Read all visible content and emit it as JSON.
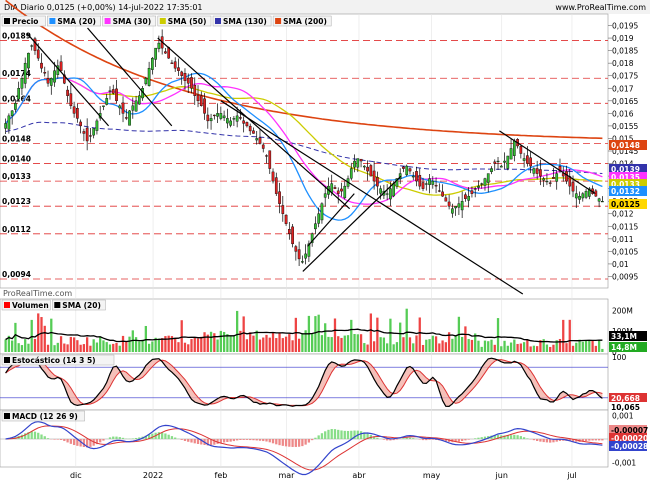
{
  "header": {
    "instrument": "DIA Diario 0,0125 (+0,00%) 14-jul-2022 17:35:01",
    "site": "www.ProRealTime.com"
  },
  "watermark": "ProRealTime.com",
  "x_labels": [
    "dic",
    "2022",
    "feb",
    "mar",
    "abr",
    "may",
    "jun",
    "jul"
  ],
  "price_panel": {
    "legend": [
      {
        "label": "Precio",
        "color": "#000000"
      },
      {
        "label": "SMA (20)",
        "color": "#1e90ff"
      },
      {
        "label": "SMA (30)",
        "color": "#ff33ff"
      },
      {
        "label": "SMA (50)",
        "color": "#cccc00"
      },
      {
        "label": "SMA (130)",
        "color": "#3333aa"
      },
      {
        "label": "SMA (200)",
        "color": "#dd4411"
      }
    ],
    "right_ticks": [
      "0,0195",
      "0,019",
      "0,0185",
      "0,018",
      "0,0175",
      "0,017",
      "0,0165",
      "0,016",
      "0,0155",
      "0,015",
      "0,0145",
      "0,014",
      "0,0135",
      "0,013",
      "0,0125",
      "0,012",
      "0,0115",
      "0,011",
      "0,0105",
      "0,01",
      "0,0095"
    ],
    "left_levels": [
      "0,0189",
      "0,0174",
      "0,0164",
      "0,0148",
      "0,0140",
      "0,0133",
      "0,0123",
      "0,0112",
      "0,0094"
    ],
    "value_badges": [
      {
        "text": "0,0148",
        "color": "#dd4411"
      },
      {
        "text": "0,0139",
        "color": "#3333aa"
      },
      {
        "text": "0,0135",
        "color": "#ff33ff"
      },
      {
        "text": "0,0133",
        "color": "#cccc00"
      },
      {
        "text": "0,0132",
        "color": "#1e90ff"
      },
      {
        "text": "0,0125",
        "color": "#ffd700"
      }
    ]
  },
  "volume_panel": {
    "legend": [
      {
        "label": "Volumen",
        "color": "#ff0000"
      },
      {
        "label": "SMA (20)",
        "color": "#000000"
      }
    ],
    "ticks": [
      "200M",
      "100M",
      "0"
    ],
    "badges": [
      "33,1M",
      "14,8M"
    ]
  },
  "stoch_panel": {
    "legend": [
      {
        "label": "Estocástico (14 3 5)",
        "color": "#000000"
      }
    ],
    "ticks": [
      "100",
      "0"
    ],
    "badges": [
      "20,668",
      "10,065"
    ]
  },
  "macd_panel": {
    "legend": [
      {
        "label": "MACD (12 26 9)",
        "color": "#000000"
      }
    ],
    "ticks": [
      "0,001",
      "-0,001"
    ],
    "badges": [
      "-0,00007",
      "-0,00020",
      "-0,00028"
    ]
  },
  "chart_data": {
    "type": "candlestick",
    "title": "DIA Diario",
    "xlabel": "",
    "ylabel": "",
    "ylim": [
      0.0092,
      0.0198
    ],
    "dates": [
      "2021-11-01",
      "2021-11-02",
      "2021-11-03",
      "2021-11-04",
      "2021-11-05",
      "2021-11-08",
      "2021-11-09",
      "2021-11-10",
      "2021-11-11",
      "2021-11-12",
      "2021-11-15",
      "2021-11-16",
      "2021-11-17",
      "2021-11-18",
      "2021-11-19",
      "2021-11-22",
      "2021-11-23",
      "2021-11-24",
      "2021-11-25",
      "2021-11-26",
      "2021-11-29",
      "2021-11-30",
      "2021-12-01",
      "2021-12-02",
      "2021-12-03",
      "2021-12-06",
      "2021-12-07",
      "2021-12-08",
      "2021-12-09",
      "2021-12-10",
      "2021-12-13",
      "2021-12-14",
      "2021-12-15",
      "2021-12-16",
      "2021-12-17",
      "2021-12-20",
      "2021-12-21",
      "2021-12-22",
      "2021-12-23",
      "2021-12-24",
      "2021-12-27",
      "2021-12-28",
      "2021-12-29",
      "2021-12-30",
      "2021-12-31",
      "2022-01-03",
      "2022-01-04",
      "2022-01-05",
      "2022-01-06",
      "2022-01-07",
      "2022-01-10",
      "2022-01-11",
      "2022-01-12",
      "2022-01-13",
      "2022-01-14",
      "2022-01-17",
      "2022-01-18",
      "2022-01-19",
      "2022-01-20",
      "2022-01-21",
      "2022-01-24",
      "2022-01-25",
      "2022-01-26",
      "2022-01-27",
      "2022-01-28",
      "2022-01-31",
      "2022-02-01",
      "2022-02-02",
      "2022-02-03",
      "2022-02-04",
      "2022-02-07",
      "2022-02-08",
      "2022-02-09",
      "2022-02-10",
      "2022-02-11",
      "2022-02-14",
      "2022-02-15",
      "2022-02-16",
      "2022-02-17",
      "2022-02-18",
      "2022-02-21",
      "2022-02-22",
      "2022-02-23",
      "2022-02-24",
      "2022-02-25",
      "2022-02-28",
      "2022-03-01",
      "2022-03-02",
      "2022-03-03",
      "2022-03-04",
      "2022-03-07",
      "2022-03-08",
      "2022-03-09",
      "2022-03-10",
      "2022-03-11",
      "2022-03-14",
      "2022-03-15",
      "2022-03-16",
      "2022-03-17",
      "2022-03-18",
      "2022-03-21",
      "2022-03-22",
      "2022-03-23",
      "2022-03-24",
      "2022-03-25",
      "2022-03-28",
      "2022-03-29",
      "2022-03-30",
      "2022-03-31",
      "2022-04-01",
      "2022-04-04",
      "2022-04-05",
      "2022-04-06",
      "2022-04-07",
      "2022-04-08",
      "2022-04-11",
      "2022-04-12",
      "2022-04-13",
      "2022-04-14",
      "2022-04-15",
      "2022-04-18",
      "2022-04-19",
      "2022-04-20",
      "2022-04-21",
      "2022-04-22",
      "2022-04-25",
      "2022-04-26",
      "2022-04-27",
      "2022-04-28",
      "2022-04-29",
      "2022-05-02",
      "2022-05-03",
      "2022-05-04",
      "2022-05-05",
      "2022-05-06",
      "2022-05-09",
      "2022-05-10",
      "2022-05-11",
      "2022-05-12",
      "2022-05-13",
      "2022-05-16",
      "2022-05-17",
      "2022-05-18",
      "2022-05-19",
      "2022-05-20",
      "2022-05-23",
      "2022-05-24",
      "2022-05-25",
      "2022-05-26",
      "2022-05-27",
      "2022-05-30",
      "2022-05-31",
      "2022-06-01",
      "2022-06-02",
      "2022-06-03",
      "2022-06-06",
      "2022-06-07",
      "2022-06-08",
      "2022-06-09",
      "2022-06-10",
      "2022-06-13",
      "2022-06-14",
      "2022-06-15",
      "2022-06-16",
      "2022-06-17",
      "2022-06-20",
      "2022-06-21",
      "2022-06-22",
      "2022-06-23",
      "2022-06-24",
      "2022-06-27",
      "2022-06-28",
      "2022-06-29",
      "2022-06-30",
      "2022-07-01",
      "2022-07-04",
      "2022-07-05",
      "2022-07-06",
      "2022-07-07",
      "2022-07-08",
      "2022-07-11",
      "2022-07-12",
      "2022-07-13",
      "2022-07-14"
    ],
    "close": [
      0.0156,
      0.0159,
      0.0161,
      0.0164,
      0.017,
      0.0174,
      0.018,
      0.0184,
      0.0187,
      0.0185,
      0.0182,
      0.0178,
      0.0176,
      0.0172,
      0.0174,
      0.0177,
      0.0179,
      0.0177,
      0.0172,
      0.0167,
      0.0163,
      0.016,
      0.0158,
      0.0155,
      0.0152,
      0.0149,
      0.0151,
      0.0154,
      0.0157,
      0.016,
      0.0163,
      0.0166,
      0.0169,
      0.0168,
      0.0165,
      0.0163,
      0.016,
      0.0158,
      0.0161,
      0.0163,
      0.0165,
      0.0167,
      0.017,
      0.0174,
      0.0178,
      0.0182,
      0.0186,
      0.0188,
      0.0186,
      0.0184,
      0.0182,
      0.018,
      0.0178,
      0.0177,
      0.0175,
      0.0173,
      0.0172,
      0.017,
      0.0167,
      0.0165,
      0.0163,
      0.016,
      0.0157,
      0.0158,
      0.0159,
      0.016,
      0.016,
      0.0159,
      0.0158,
      0.0157,
      0.0158,
      0.0159,
      0.0158,
      0.0156,
      0.0155,
      0.0153,
      0.0152,
      0.015,
      0.0148,
      0.0146,
      0.0143,
      0.0138,
      0.0133,
      0.0128,
      0.0124,
      0.012,
      0.0116,
      0.0112,
      0.0108,
      0.0105,
      0.0102,
      0.0101,
      0.0104,
      0.0108,
      0.0112,
      0.0116,
      0.012,
      0.0124,
      0.0128,
      0.0131,
      0.0132,
      0.013,
      0.0128,
      0.0129,
      0.0131,
      0.0134,
      0.0138,
      0.0141,
      0.0142,
      0.0141,
      0.0139,
      0.0137,
      0.0135,
      0.0133,
      0.0131,
      0.013,
      0.0129,
      0.0128,
      0.013,
      0.0132,
      0.0134,
      0.0136,
      0.0138,
      0.0139,
      0.0137,
      0.0135,
      0.0133,
      0.0131,
      0.013,
      0.0132,
      0.0134,
      0.0133,
      0.0131,
      0.0129,
      0.0127,
      0.0125,
      0.0123,
      0.0122,
      0.0123,
      0.0124,
      0.0125,
      0.0126,
      0.0127,
      0.0128,
      0.013,
      0.0131,
      0.0132,
      0.0134,
      0.0136,
      0.0138,
      0.014,
      0.0141,
      0.0139,
      0.0141,
      0.0143,
      0.0146,
      0.0149,
      0.0147,
      0.0144,
      0.0142,
      0.014,
      0.0139,
      0.0138,
      0.0136,
      0.0135,
      0.0134,
      0.0133,
      0.0132,
      0.0134,
      0.0136,
      0.0137,
      0.0135,
      0.0133,
      0.0131,
      0.0129,
      0.0128,
      0.0127,
      0.0128,
      0.0129,
      0.013,
      0.0128,
      0.0127,
      0.0126,
      0.0125
    ],
    "legend_series": [
      "Precio",
      "SMA (20)",
      "SMA (30)",
      "SMA (50)",
      "SMA (130)",
      "SMA (200)"
    ],
    "last": {
      "precio": 0.0125,
      "sma20": 0.0132,
      "sma30": 0.0135,
      "sma50": 0.0133,
      "sma130": 0.0139,
      "sma200": 0.0148
    },
    "horizontal_levels": [
      0.0189,
      0.0174,
      0.0164,
      0.0148,
      0.014,
      0.0133,
      0.0123,
      0.0112,
      0.0094
    ],
    "volume": {
      "ticks": [
        200,
        100,
        0
      ],
      "unit": "M",
      "last_volume": 14.8,
      "last_sma20": 33.1
    },
    "stochastic": {
      "range": [
        0,
        100
      ],
      "levels": [
        20,
        80
      ],
      "last": [
        20.668,
        10.065
      ]
    },
    "macd": {
      "last": [
        -7e-05,
        -0.0002,
        -0.00028
      ],
      "ylim": [
        -0.0011,
        0.0011
      ]
    }
  }
}
